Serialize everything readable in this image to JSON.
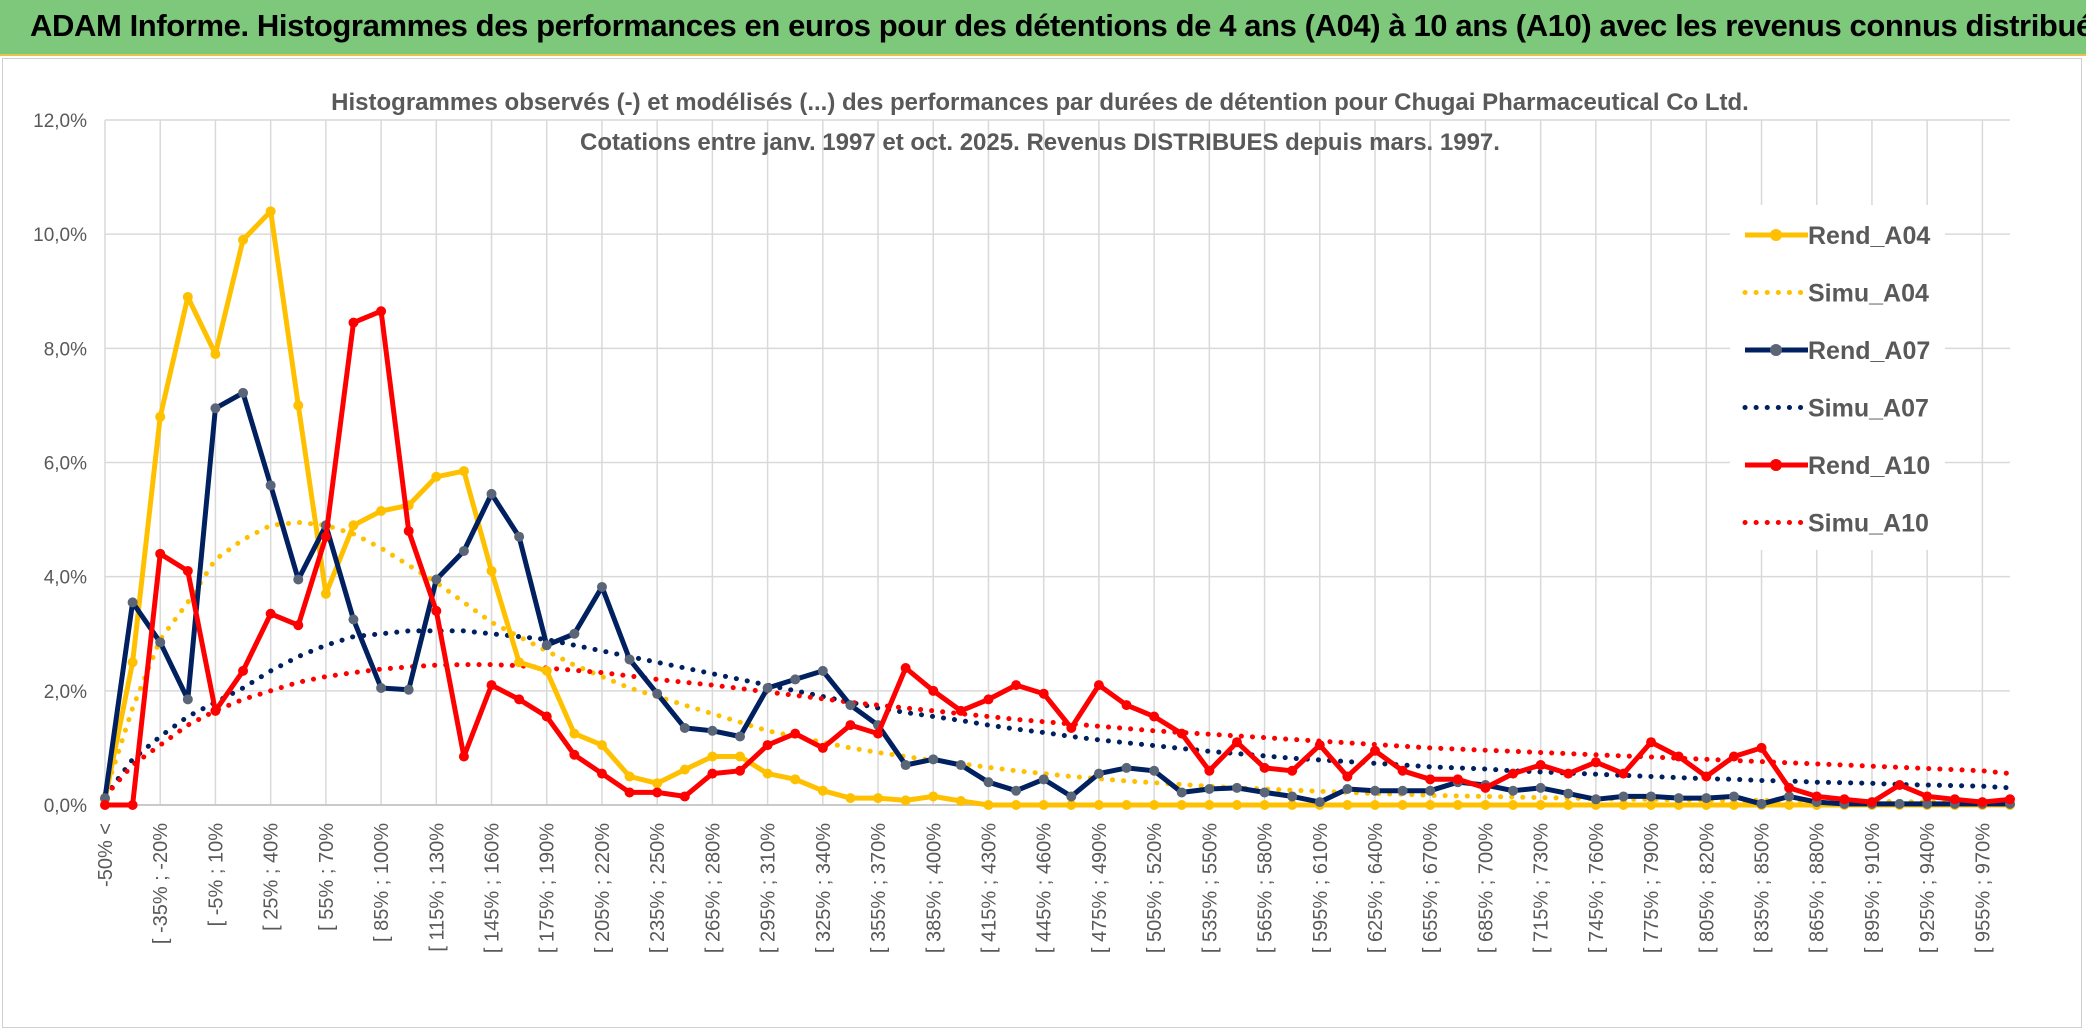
{
  "banner": {
    "title": "ADAM Informe. Histogrammes des performances en euros pour des détentions de 4 ans (A04) à 10 ans (A10) avec les revenus connus distribués"
  },
  "chart_data": {
    "type": "line",
    "title": "Histogrammes observés (-) et modélisés (...) des performances par durées de détention pour Chugai Pharmaceutical Co Ltd.",
    "subtitle": "Cotations entre janv. 1997 et oct. 2025. Revenus DISTRIBUES depuis mars. 1997.",
    "xlabel": "",
    "ylabel": "",
    "ylim": [
      0,
      12
    ],
    "y_ticks": [
      "0,0%",
      "2,0%",
      "4,0%",
      "6,0%",
      "8,0%",
      "10,0%",
      "12,0%"
    ],
    "grid": true,
    "legend_position": "right",
    "x_tick_labels": [
      "-50% <",
      "[ -35% ; -20%",
      "[ -5% ; 10%",
      "[ 25% ; 40%",
      "[ 55% ; 70%",
      "[ 85% ; 100%",
      "[ 115% ; 130%",
      "[ 145% ; 160%",
      "[ 175% ; 190%",
      "[ 205% ; 220%",
      "[ 235% ; 250%",
      "[ 265% ; 280%",
      "[ 295% ; 310%",
      "[ 325% ; 340%",
      "[ 355% ; 370%",
      "[ 385% ; 400%",
      "[ 415% ; 430%",
      "[ 445% ; 460%",
      "[ 475% ; 490%",
      "[ 505% ; 520%",
      "[ 535% ; 550%",
      "[ 565% ; 580%",
      "[ 595% ; 610%",
      "[ 625% ; 640%",
      "[ 655% ; 670%",
      "[ 685% ; 700%",
      "[ 715% ; 730%",
      "[ 745% ; 760%",
      "[ 775% ; 790%",
      "[ 805% ; 820%",
      "[ 835% ; 850%",
      "[ 865% ; 880%",
      "[ 895% ; 910%",
      "[ 925% ; 940%",
      "[ 955% ; 970%"
    ],
    "n_points": 70,
    "series": [
      {
        "name": "Rend_A04",
        "style": "solid",
        "color": "#ffc000",
        "marker_color": "#ffc000",
        "values": [
          0.1,
          2.5,
          6.8,
          8.9,
          7.9,
          9.9,
          10.4,
          7.0,
          3.7,
          4.9,
          5.15,
          5.25,
          5.75,
          5.85,
          4.1,
          2.5,
          2.35,
          1.25,
          1.05,
          0.5,
          0.38,
          0.62,
          0.85,
          0.85,
          0.55,
          0.45,
          0.25,
          0.12,
          0.12,
          0.08,
          0.15,
          0.07,
          0,
          0,
          0,
          0,
          0,
          0,
          0,
          0,
          0,
          0,
          0,
          0,
          0,
          0,
          0,
          0,
          0,
          0,
          0,
          0,
          0,
          0,
          0,
          0,
          0,
          0,
          0,
          0,
          0,
          0,
          0,
          0,
          0,
          0,
          0,
          0,
          0,
          0
        ]
      },
      {
        "name": "Simu_A04",
        "style": "dotted",
        "color": "#ffc000",
        "values": [
          0.2,
          1.7,
          2.9,
          3.55,
          4.3,
          4.65,
          4.9,
          4.95,
          4.9,
          4.75,
          4.5,
          4.2,
          3.9,
          3.55,
          3.2,
          2.95,
          2.7,
          2.45,
          2.25,
          2.05,
          1.9,
          1.75,
          1.6,
          1.45,
          1.3,
          1.2,
          1.1,
          1.0,
          0.92,
          0.85,
          0.78,
          0.72,
          0.66,
          0.6,
          0.55,
          0.5,
          0.46,
          0.42,
          0.39,
          0.36,
          0.33,
          0.3,
          0.28,
          0.26,
          0.24,
          0.22,
          0.2,
          0.19,
          0.17,
          0.16,
          0.15,
          0.14,
          0.13,
          0.12,
          0.11,
          0.1,
          0.1,
          0.09,
          0.09,
          0.08,
          0.08,
          0.07,
          0.07,
          0.06,
          0.06,
          0.06,
          0.05,
          0.05,
          0.05,
          0.05
        ]
      },
      {
        "name": "Rend_A07",
        "style": "solid",
        "color": "#002060",
        "marker_color": "#5a6678",
        "values": [
          0.12,
          3.55,
          2.85,
          1.85,
          6.95,
          7.22,
          5.6,
          3.95,
          4.9,
          3.25,
          2.05,
          2.02,
          3.95,
          4.45,
          5.45,
          4.7,
          2.8,
          3.0,
          3.82,
          2.55,
          1.95,
          1.35,
          1.3,
          1.2,
          2.05,
          2.2,
          2.35,
          1.75,
          1.4,
          0.7,
          0.8,
          0.7,
          0.4,
          0.25,
          0.45,
          0.15,
          0.55,
          0.65,
          0.6,
          0.22,
          0.28,
          0.3,
          0.22,
          0.15,
          0.05,
          0.28,
          0.25,
          0.25,
          0.25,
          0.4,
          0.35,
          0.25,
          0.3,
          0.2,
          0.1,
          0.15,
          0.15,
          0.12,
          0.12,
          0.15,
          0.02,
          0.15,
          0.05,
          0.02,
          0.02,
          0.02,
          0.02,
          0.02,
          0.02,
          0.02
        ]
      },
      {
        "name": "Simu_A07",
        "style": "dotted",
        "color": "#002060",
        "values": [
          0.15,
          0.8,
          1.2,
          1.55,
          1.8,
          2.05,
          2.35,
          2.6,
          2.8,
          2.95,
          3.0,
          3.05,
          3.05,
          3.05,
          3.0,
          2.95,
          2.9,
          2.8,
          2.7,
          2.6,
          2.5,
          2.4,
          2.3,
          2.2,
          2.1,
          2.0,
          1.9,
          1.8,
          1.7,
          1.62,
          1.55,
          1.48,
          1.4,
          1.33,
          1.27,
          1.2,
          1.14,
          1.09,
          1.04,
          0.99,
          0.94,
          0.9,
          0.86,
          0.82,
          0.79,
          0.76,
          0.73,
          0.7,
          0.67,
          0.65,
          0.63,
          0.6,
          0.58,
          0.56,
          0.54,
          0.52,
          0.5,
          0.48,
          0.46,
          0.45,
          0.43,
          0.42,
          0.4,
          0.39,
          0.38,
          0.36,
          0.35,
          0.34,
          0.33,
          0.3
        ]
      },
      {
        "name": "Rend_A10",
        "style": "solid",
        "color": "#ff0000",
        "marker_color": "#ff0000",
        "values": [
          0.0,
          0.0,
          4.4,
          4.1,
          1.65,
          2.35,
          3.35,
          3.15,
          4.7,
          8.45,
          8.65,
          4.8,
          3.4,
          0.85,
          2.1,
          1.85,
          1.55,
          0.88,
          0.55,
          0.22,
          0.22,
          0.15,
          0.55,
          0.6,
          1.05,
          1.25,
          1.0,
          1.4,
          1.25,
          2.4,
          2.0,
          1.65,
          1.85,
          2.1,
          1.95,
          1.35,
          2.1,
          1.75,
          1.55,
          1.25,
          0.6,
          1.1,
          0.65,
          0.6,
          1.05,
          0.5,
          0.95,
          0.6,
          0.45,
          0.45,
          0.3,
          0.55,
          0.7,
          0.55,
          0.75,
          0.55,
          1.1,
          0.85,
          0.5,
          0.85,
          1.0,
          0.3,
          0.15,
          0.1,
          0.05,
          0.35,
          0.15,
          0.1,
          0.05,
          0.1
        ]
      },
      {
        "name": "Simu_A10",
        "style": "dotted",
        "color": "#ff0000",
        "values": [
          0.15,
          0.7,
          1.05,
          1.4,
          1.65,
          1.85,
          2.0,
          2.15,
          2.25,
          2.32,
          2.38,
          2.42,
          2.45,
          2.46,
          2.46,
          2.44,
          2.4,
          2.36,
          2.32,
          2.26,
          2.2,
          2.15,
          2.1,
          2.04,
          1.98,
          1.92,
          1.86,
          1.8,
          1.75,
          1.7,
          1.65,
          1.6,
          1.55,
          1.5,
          1.46,
          1.42,
          1.38,
          1.34,
          1.3,
          1.27,
          1.24,
          1.21,
          1.18,
          1.15,
          1.12,
          1.09,
          1.06,
          1.03,
          1.0,
          0.98,
          0.96,
          0.94,
          0.92,
          0.9,
          0.88,
          0.86,
          0.84,
          0.82,
          0.8,
          0.78,
          0.76,
          0.74,
          0.72,
          0.7,
          0.68,
          0.66,
          0.64,
          0.62,
          0.6,
          0.55
        ]
      }
    ]
  }
}
